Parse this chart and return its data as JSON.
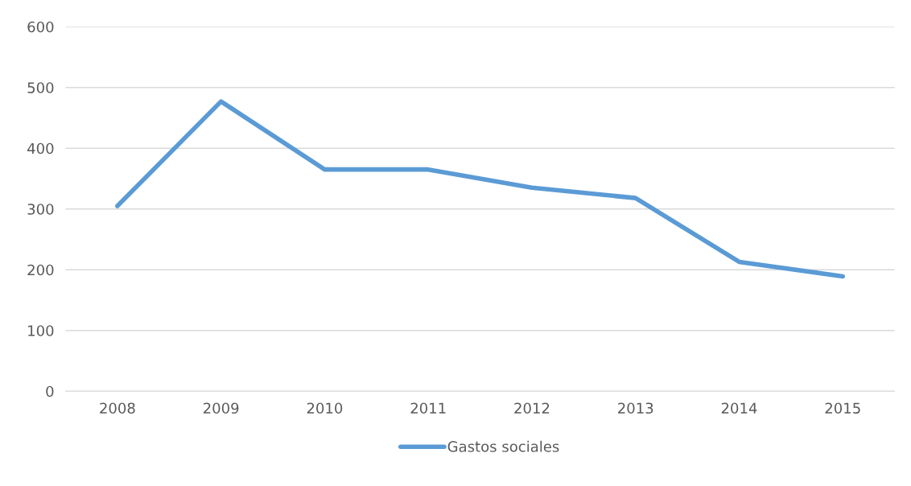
{
  "chart_data": {
    "type": "line",
    "categories": [
      "2008",
      "2009",
      "2010",
      "2011",
      "2012",
      "2013",
      "2014",
      "2015"
    ],
    "series": [
      {
        "name": "Gastos sociales",
        "color": "#5b9bd5",
        "values": [
          305,
          477,
          365,
          365,
          335,
          318,
          213,
          189
        ]
      }
    ],
    "ylim": [
      0,
      600
    ],
    "yticks": [
      0,
      100,
      200,
      300,
      400,
      500,
      600
    ],
    "grid": "y",
    "legend": "bottom",
    "marker": "none",
    "line_style": "solid"
  }
}
